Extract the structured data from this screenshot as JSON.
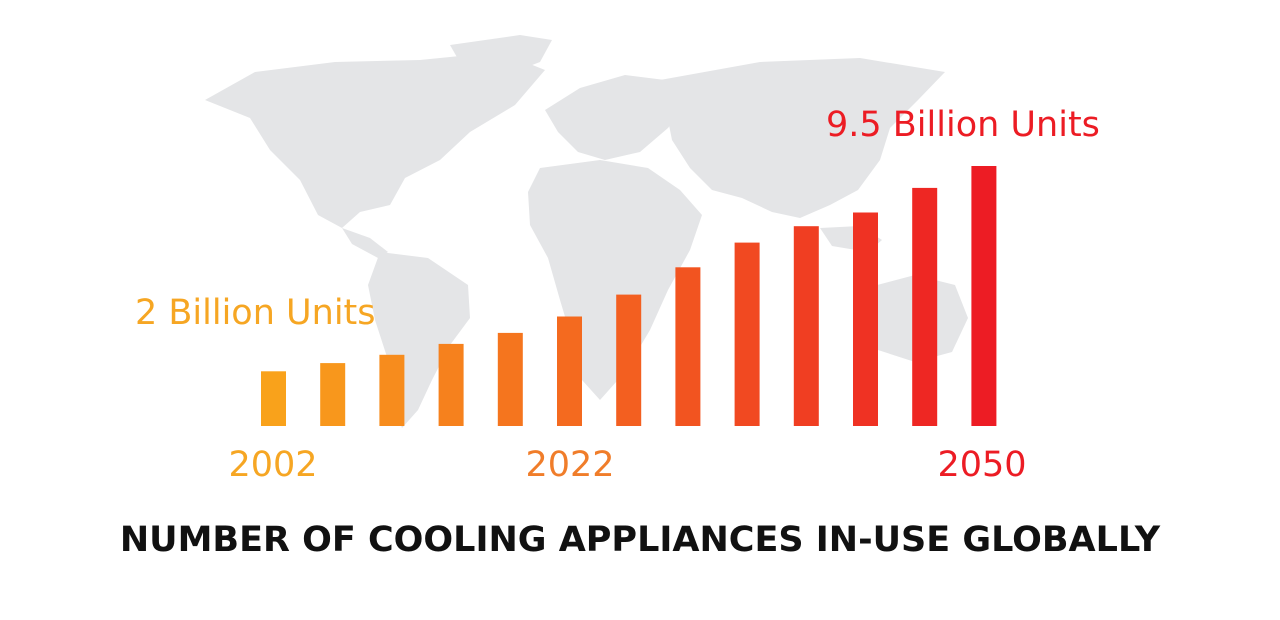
{
  "chart_data": {
    "type": "bar",
    "title": "NUMBER OF COOLING APPLIANCES IN-USE GLOBALLY",
    "x_tick_labels": [
      "2002",
      "2022",
      "2050"
    ],
    "annotations": [
      "2 Billion Units",
      "9.5 Billion Units"
    ],
    "values": [
      2.0,
      2.3,
      2.6,
      3.0,
      3.4,
      4.0,
      4.8,
      5.8,
      6.7,
      7.3,
      7.8,
      8.7,
      9.5
    ],
    "unit": "Billion Units",
    "ylim": [
      0,
      10
    ],
    "grid": false,
    "legend": "none",
    "colors": {
      "start": "#f9a21b",
      "end": "#ed1c24",
      "label_2002": "#f6a623",
      "label_2022": "#f07d2a",
      "label_2050": "#ec1c24",
      "map": "#e4e5e7",
      "title": "#111111"
    }
  }
}
